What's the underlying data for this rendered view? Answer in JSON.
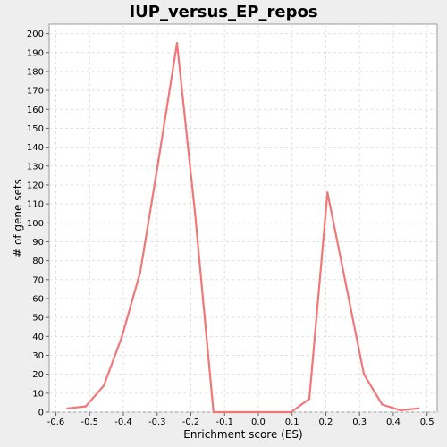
{
  "chart_data": {
    "type": "line",
    "title": "IUP_versus_EP_repos",
    "xlabel": "Enrichment score (ES)",
    "ylabel": "# of gene sets",
    "xlim": [
      -0.62,
      0.53
    ],
    "ylim": [
      0,
      205
    ],
    "x_ticks": [
      -0.6,
      -0.5,
      -0.4,
      -0.3,
      -0.2,
      -0.1,
      0.0,
      0.1,
      0.2,
      0.3,
      0.4,
      0.5
    ],
    "x_tick_labels": [
      "-0.6",
      "-0.5",
      "-0.4",
      "-0.3",
      "-0.2",
      "-0.1",
      "0.0",
      "0.1",
      "0.2",
      "0.3",
      "0.4",
      "0.5"
    ],
    "y_ticks": [
      0,
      10,
      20,
      30,
      40,
      50,
      60,
      70,
      80,
      90,
      100,
      110,
      120,
      130,
      140,
      150,
      160,
      170,
      180,
      190,
      200
    ],
    "y_tick_labels": [
      "0",
      "10",
      "20",
      "30",
      "40",
      "50",
      "60",
      "70",
      "80",
      "90",
      "100",
      "110",
      "120",
      "130",
      "140",
      "150",
      "160",
      "170",
      "180",
      "190",
      "200"
    ],
    "grid": true,
    "line_color": "#f07878",
    "series": [
      {
        "x": [
          -0.566,
          -0.512,
          -0.458,
          -0.404,
          -0.35,
          -0.296,
          -0.241,
          -0.187,
          -0.133,
          -0.079,
          0.0,
          0.097,
          0.151,
          0.205,
          0.259,
          0.313,
          0.367,
          0.421,
          0.475
        ],
        "y": [
          2,
          3,
          14,
          40,
          74,
          133,
          195,
          104,
          0,
          0,
          0,
          0,
          7,
          116,
          68,
          20,
          4,
          1,
          2
        ]
      }
    ]
  }
}
